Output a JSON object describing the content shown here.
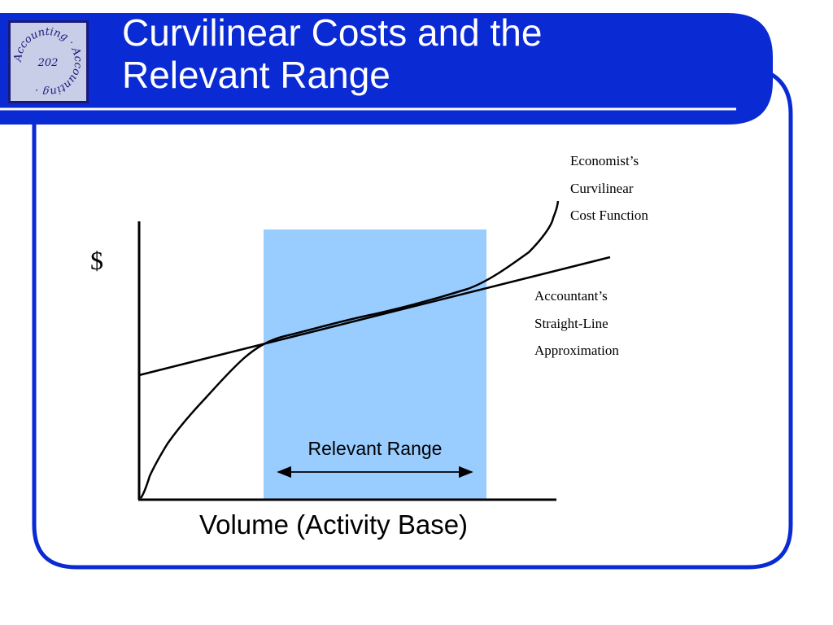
{
  "slide": {
    "title_lines": [
      "Curvilinear Costs and the",
      "Relevant Range"
    ],
    "colors": {
      "brand_blue": "#0a2ad4",
      "range_fill": "#99ccff",
      "logo_bg": "#c8cde8"
    },
    "logo": {
      "text_outer": "Accounting Accounting",
      "text_center": "202"
    }
  },
  "diagram": {
    "y_axis_label": "$",
    "x_axis_label": "Volume (Activity Base)",
    "relevant_range_label": "Relevant Range",
    "economist_label_lines": [
      "Economist’s",
      "Curvilinear",
      "Cost Function"
    ],
    "accountant_label_lines": [
      "Accountant’s",
      "Straight-Line",
      "Approximation"
    ]
  }
}
